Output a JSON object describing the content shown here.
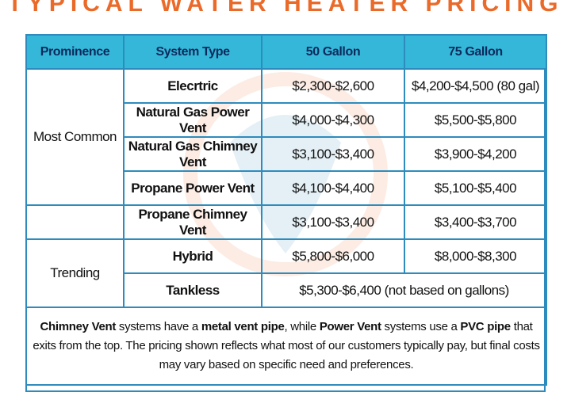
{
  "title": "TYPICAL WATER HEATER PRICING",
  "colors": {
    "title": "#ea6a2a",
    "header_bg": "#34b7d9",
    "border": "#2d8cbd",
    "system_text": "#1b5fb1"
  },
  "table": {
    "headers": [
      "Prominence",
      "System Type",
      "50 Gallon",
      "75 Gallon"
    ],
    "groups": {
      "most_common": "Most Common",
      "trending": "Trending"
    },
    "rows": [
      {
        "system": "Elecrtric",
        "g50": "$2,300-$2,600",
        "g75": "$4,200-$4,500 (80 gal)"
      },
      {
        "system": "Natural Gas Power Vent",
        "g50": "$4,000-$4,300",
        "g75": "$5,500-$5,800"
      },
      {
        "system": "Natural Gas Chimney Vent",
        "g50": "$3,100-$3,400",
        "g75": "$3,900-$4,200"
      },
      {
        "system": "Propane Power Vent",
        "g50": "$4,100-$4,400",
        "g75": "$5,100-$5,400"
      },
      {
        "system": "Propane Chimney Vent",
        "g50": "$3,100-$3,400",
        "g75": "$3,400-$3,700"
      },
      {
        "system": "Hybrid",
        "g50": "$5,800-$6,000",
        "g75": "$8,000-$8,300"
      },
      {
        "system": "Tankless",
        "combined": "$5,300-$6,400 (not based on gallons)"
      }
    ]
  },
  "note": {
    "part1": "Chimney Vent",
    "part2": " systems have a ",
    "part3": "metal vent pipe",
    "part4": ", while ",
    "part5": "Power Vent",
    "part6": " systems use a ",
    "part7": "PVC pipe",
    "part8": " that exits from the top. The pricing shown reflects what most of our customers typically pay, but final costs may vary based on specific need and preferences."
  }
}
